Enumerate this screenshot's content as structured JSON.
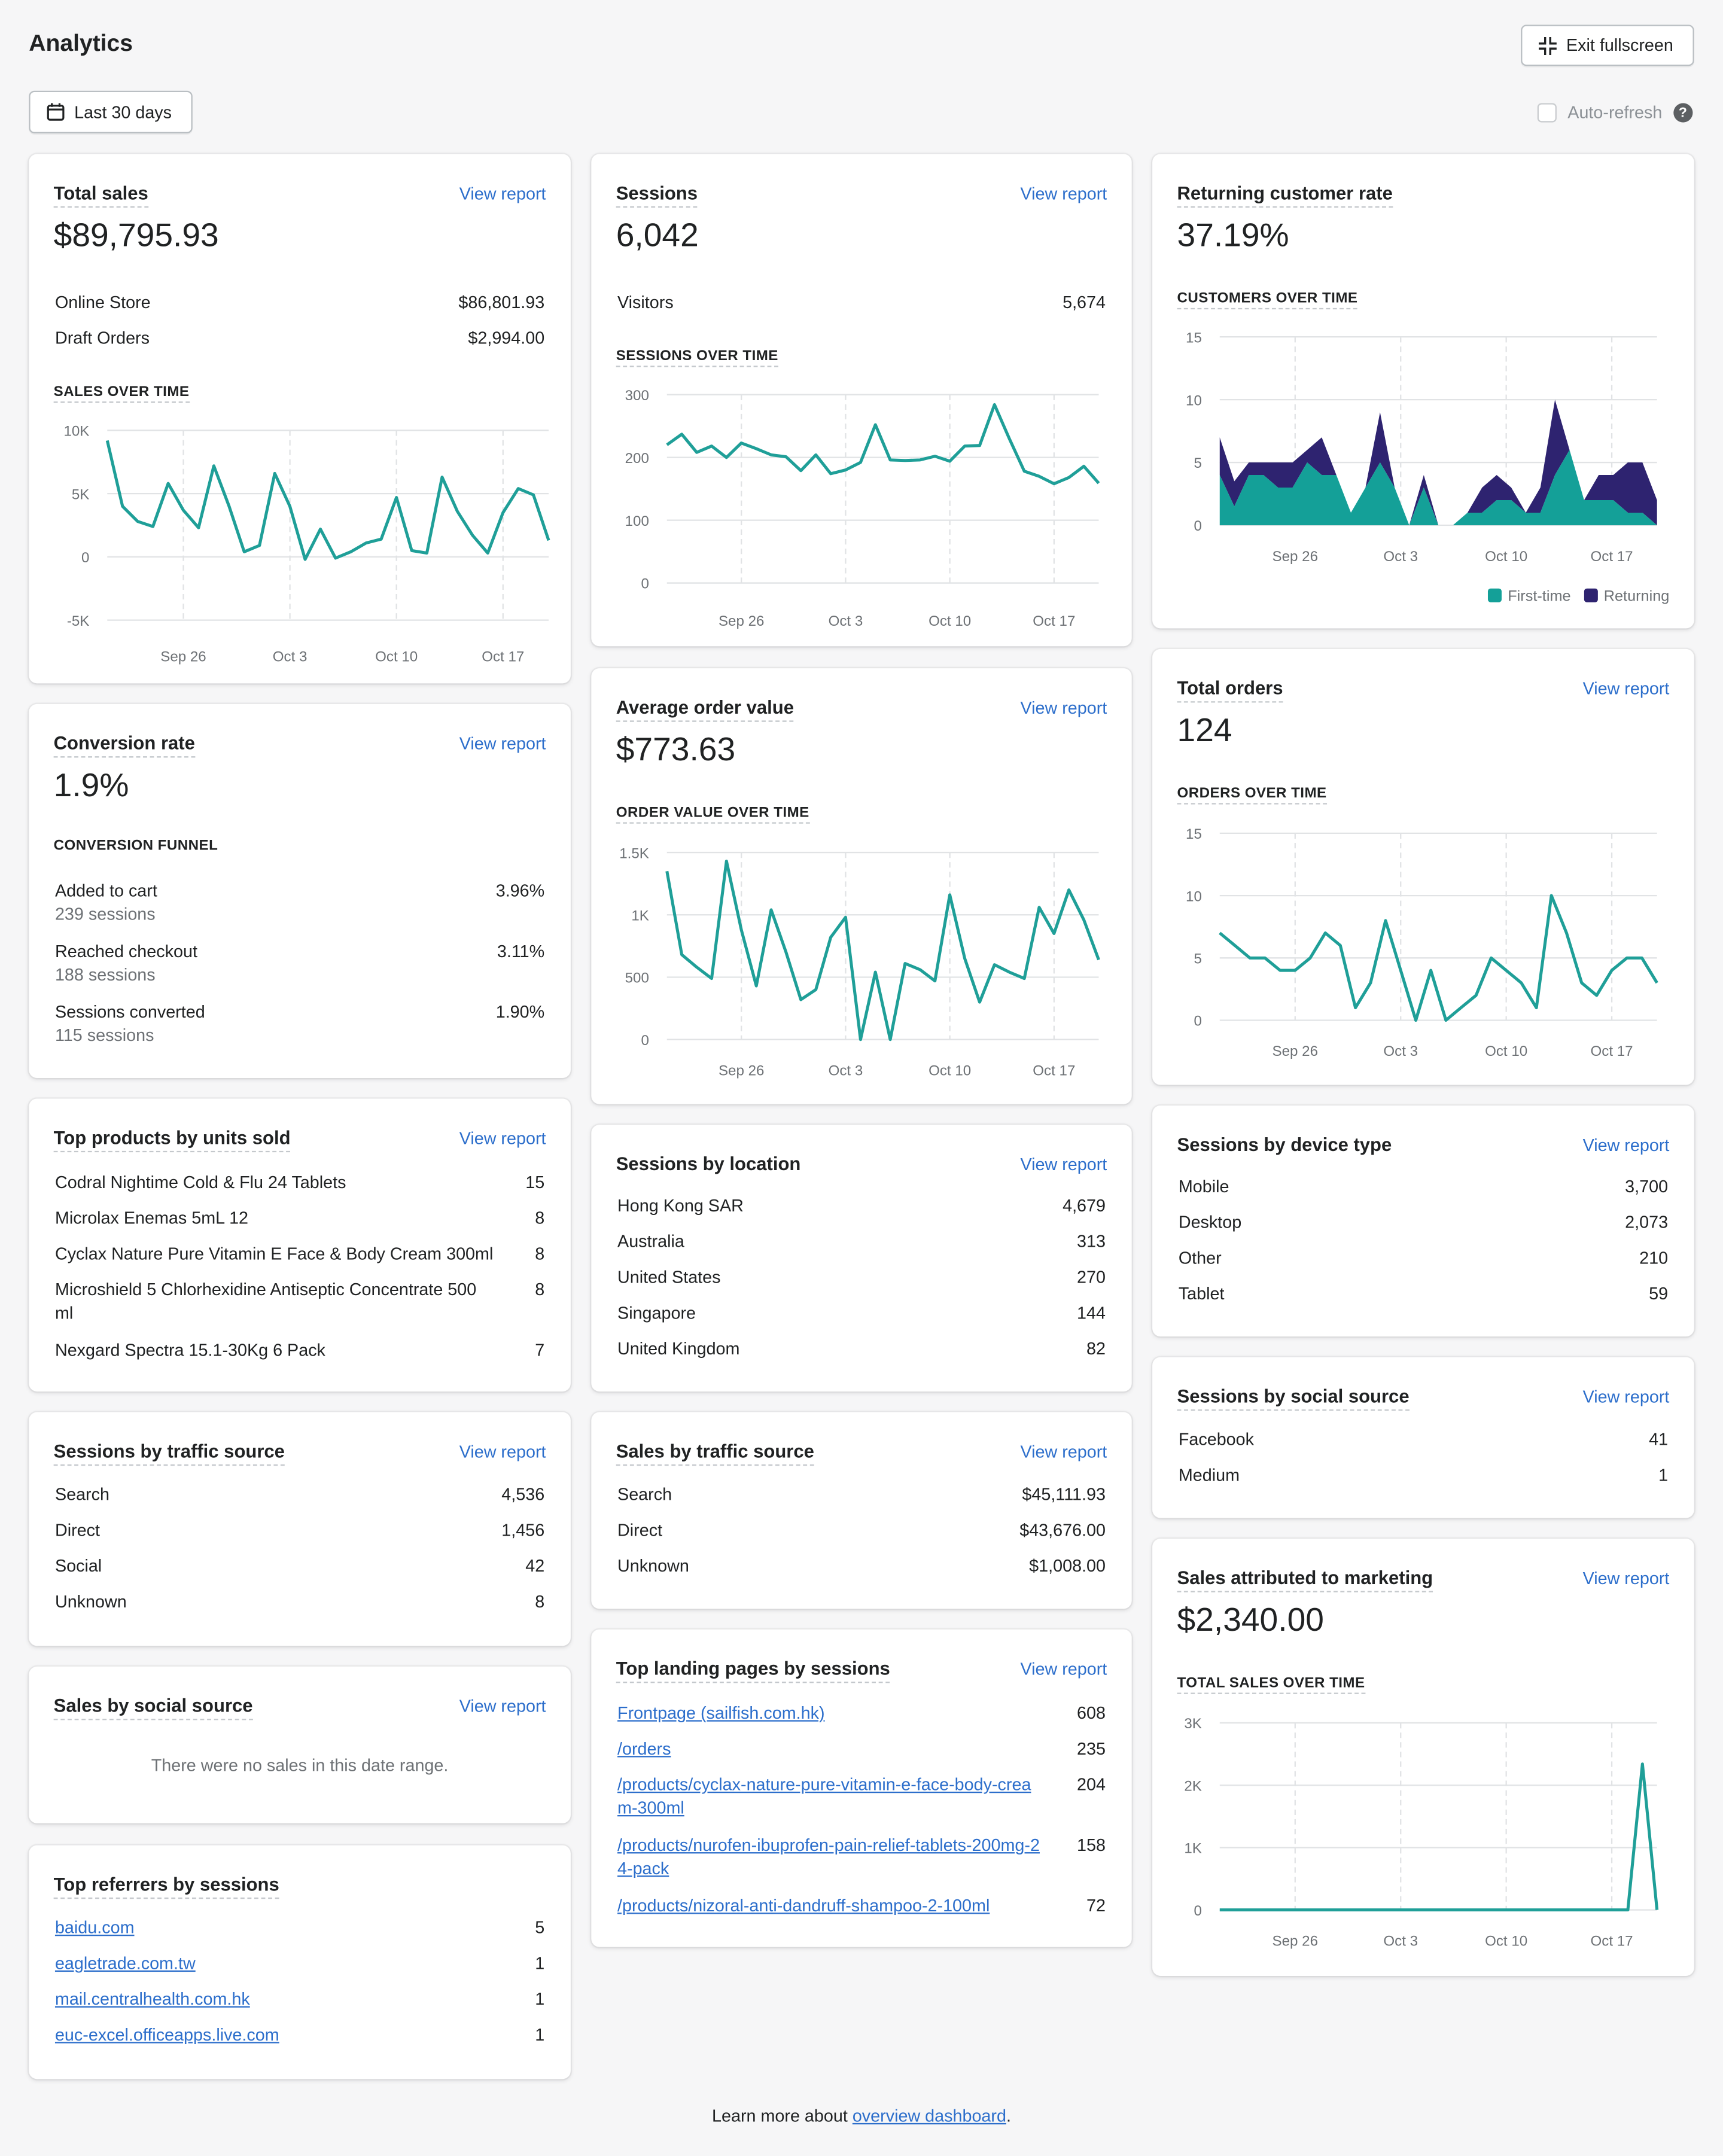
{
  "header": {
    "title": "Analytics",
    "exit_label": "Exit fullscreen",
    "date_range": "Last 30 days",
    "auto_refresh": "Auto-refresh"
  },
  "common": {
    "view_report": "View report"
  },
  "total_sales": {
    "title": "Total sales",
    "value": "$89,795.93",
    "rows": [
      {
        "label": "Online Store",
        "value": "$86,801.93"
      },
      {
        "label": "Draft Orders",
        "value": "$2,994.00"
      }
    ],
    "chart_title": "SALES OVER TIME"
  },
  "sessions": {
    "title": "Sessions",
    "value": "6,042",
    "rows": [
      {
        "label": "Visitors",
        "value": "5,674"
      }
    ],
    "chart_title": "SESSIONS OVER TIME"
  },
  "returning": {
    "title": "Returning customer rate",
    "value": "37.19%",
    "chart_title": "CUSTOMERS OVER TIME",
    "legend": [
      "First-time",
      "Returning"
    ]
  },
  "conversion": {
    "title": "Conversion rate",
    "value": "1.9%",
    "funnel_title": "CONVERSION FUNNEL",
    "rows": [
      {
        "label": "Added to cart",
        "sub": "239 sessions",
        "value": "3.96%"
      },
      {
        "label": "Reached checkout",
        "sub": "188 sessions",
        "value": "3.11%"
      },
      {
        "label": "Sessions converted",
        "sub": "115 sessions",
        "value": "1.90%"
      }
    ]
  },
  "aov": {
    "title": "Average order value",
    "value": "$773.63",
    "chart_title": "ORDER VALUE OVER TIME"
  },
  "total_orders": {
    "title": "Total orders",
    "value": "124",
    "chart_title": "ORDERS OVER TIME"
  },
  "top_products": {
    "title": "Top products by units sold",
    "rows": [
      {
        "label": "Codral Nightime Cold & Flu 24 Tablets",
        "value": "15"
      },
      {
        "label": "Microlax Enemas 5mL 12",
        "value": "8"
      },
      {
        "label": "Cyclax Nature Pure Vitamin E Face & Body Cream 300ml",
        "value": "8"
      },
      {
        "label": "Microshield 5 Chlorhexidine Antiseptic Concentrate 500 ml",
        "value": "8"
      },
      {
        "label": "Nexgard Spectra 15.1-30Kg 6 Pack",
        "value": "7"
      }
    ]
  },
  "location": {
    "title": "Sessions by location",
    "rows": [
      {
        "label": "Hong Kong SAR",
        "value": "4,679"
      },
      {
        "label": "Australia",
        "value": "313"
      },
      {
        "label": "United States",
        "value": "270"
      },
      {
        "label": "Singapore",
        "value": "144"
      },
      {
        "label": "United Kingdom",
        "value": "82"
      }
    ]
  },
  "device": {
    "title": "Sessions by device type",
    "rows": [
      {
        "label": "Mobile",
        "value": "3,700"
      },
      {
        "label": "Desktop",
        "value": "2,073"
      },
      {
        "label": "Other",
        "value": "210"
      },
      {
        "label": "Tablet",
        "value": "59"
      }
    ]
  },
  "traffic": {
    "title": "Sessions by traffic source",
    "rows": [
      {
        "label": "Search",
        "value": "4,536"
      },
      {
        "label": "Direct",
        "value": "1,456"
      },
      {
        "label": "Social",
        "value": "42"
      },
      {
        "label": "Unknown",
        "value": "8"
      }
    ]
  },
  "sales_traffic": {
    "title": "Sales by traffic source",
    "rows": [
      {
        "label": "Search",
        "value": "$45,111.93"
      },
      {
        "label": "Direct",
        "value": "$43,676.00"
      },
      {
        "label": "Unknown",
        "value": "$1,008.00"
      }
    ]
  },
  "social": {
    "title": "Sessions by social source",
    "rows": [
      {
        "label": "Facebook",
        "value": "41"
      },
      {
        "label": "Medium",
        "value": "1"
      }
    ]
  },
  "sales_social": {
    "title": "Sales by social source",
    "empty": "There were no sales in this date range."
  },
  "landing": {
    "title": "Top landing pages by sessions",
    "rows": [
      {
        "label": "Frontpage (sailfish.com.hk)",
        "value": "608"
      },
      {
        "label": "/orders",
        "value": "235"
      },
      {
        "label": "/products/cyclax-nature-pure-vitamin-e-face-body-cream-300ml",
        "value": "204"
      },
      {
        "label": "/products/nurofen-ibuprofen-pain-relief-tablets-200mg-24-pack",
        "value": "158"
      },
      {
        "label": "/products/nizoral-anti-dandruff-shampoo-2-100ml",
        "value": "72"
      }
    ]
  },
  "marketing": {
    "title": "Sales attributed to marketing",
    "value": "$2,340.00",
    "chart_title": "TOTAL SALES OVER TIME"
  },
  "referrers": {
    "title": "Top referrers by sessions",
    "rows": [
      {
        "label": "baidu.com",
        "value": "5"
      },
      {
        "label": "eagletrade.com.tw",
        "value": "1"
      },
      {
        "label": "mail.centralhealth.com.hk",
        "value": "1"
      },
      {
        "label": "euc-excel.officeapps.live.com",
        "value": "1"
      }
    ]
  },
  "footer": {
    "text": "Learn more about ",
    "link": "overview dashboard",
    "end": "."
  },
  "colors": {
    "series": "#1f9f98",
    "first_time": "#14a098",
    "returning": "#2e2370"
  },
  "chart_data": [
    {
      "id": "sales",
      "type": "line",
      "x_ticks": [
        "Sep 26",
        "Oct 3",
        "Oct 10",
        "Oct 17"
      ],
      "y_ticks": [
        "10K",
        "5K",
        "0",
        "-5K"
      ],
      "ylim": [
        -5000,
        10000
      ],
      "values": [
        9200,
        4000,
        2800,
        2400,
        5800,
        3700,
        2300,
        7200,
        4000,
        400,
        900,
        6600,
        4000,
        -200,
        2200,
        -100,
        400,
        1100,
        1400,
        4700,
        500,
        300,
        6300,
        3600,
        1700,
        300,
        3500,
        5400,
        4900,
        1300
      ]
    },
    {
      "id": "sessions",
      "type": "line",
      "x_ticks": [
        "Sep 26",
        "Oct 3",
        "Oct 10",
        "Oct 17"
      ],
      "y_ticks": [
        "300",
        "200",
        "100",
        "0"
      ],
      "ylim": [
        0,
        300
      ],
      "values": [
        220,
        237,
        208,
        218,
        200,
        223,
        214,
        204,
        201,
        179,
        204,
        174,
        180,
        192,
        252,
        196,
        195,
        196,
        202,
        194,
        218,
        219,
        284,
        230,
        178,
        170,
        158,
        168,
        186,
        159
      ]
    },
    {
      "id": "customers",
      "type": "area",
      "x_ticks": [
        "Sep 26",
        "Oct 3",
        "Oct 10",
        "Oct 17"
      ],
      "y_ticks": [
        "15",
        "10",
        "5",
        "0"
      ],
      "ylim": [
        0,
        15
      ],
      "series": [
        {
          "name": "First-time",
          "values": [
            4,
            1.5,
            4,
            4,
            3,
            3,
            5,
            4,
            4,
            1,
            3,
            5,
            3,
            0,
            3,
            0,
            0,
            1,
            1,
            2,
            2,
            1,
            1,
            4,
            6,
            2,
            2,
            2,
            1,
            1,
            0
          ]
        },
        {
          "name": "Returning",
          "values": [
            3,
            2,
            1,
            1,
            2,
            2,
            1,
            3,
            0,
            0,
            0,
            4,
            0,
            0,
            1,
            0,
            0,
            0,
            2,
            2,
            1,
            0,
            2,
            6,
            0,
            0,
            2,
            2,
            4,
            4,
            2
          ]
        }
      ]
    },
    {
      "id": "orders",
      "type": "line",
      "x_ticks": [
        "Sep 26",
        "Oct 3",
        "Oct 10",
        "Oct 17"
      ],
      "y_ticks": [
        "15",
        "10",
        "5",
        "0"
      ],
      "ylim": [
        0,
        15
      ],
      "values": [
        7,
        6,
        5,
        5,
        4,
        4,
        5,
        7,
        6,
        1,
        3,
        8,
        4,
        0,
        4,
        0,
        1,
        2,
        5,
        4,
        3,
        1,
        10,
        7,
        3,
        2,
        4,
        5,
        5,
        3
      ]
    },
    {
      "id": "aov",
      "type": "line",
      "x_ticks": [
        "Sep 26",
        "Oct 3",
        "Oct 10",
        "Oct 17"
      ],
      "y_ticks": [
        "1.5K",
        "1K",
        "500",
        "0"
      ],
      "ylim": [
        0,
        1500
      ],
      "values": [
        1350,
        680,
        580,
        490,
        1430,
        880,
        430,
        1040,
        700,
        320,
        400,
        820,
        980,
        0,
        540,
        0,
        610,
        560,
        470,
        1160,
        650,
        300,
        600,
        540,
        490,
        1060,
        850,
        1200,
        960,
        640
      ]
    },
    {
      "id": "marketing",
      "type": "line",
      "x_ticks": [
        "Sep 26",
        "Oct 3",
        "Oct 10",
        "Oct 17"
      ],
      "y_ticks": [
        "3K",
        "2K",
        "1K",
        "0"
      ],
      "ylim": [
        0,
        3000
      ],
      "values": [
        0,
        0,
        0,
        0,
        0,
        0,
        0,
        0,
        0,
        0,
        0,
        0,
        0,
        0,
        0,
        0,
        0,
        0,
        0,
        0,
        0,
        0,
        0,
        0,
        0,
        0,
        0,
        0,
        0,
        2340,
        0
      ]
    }
  ]
}
